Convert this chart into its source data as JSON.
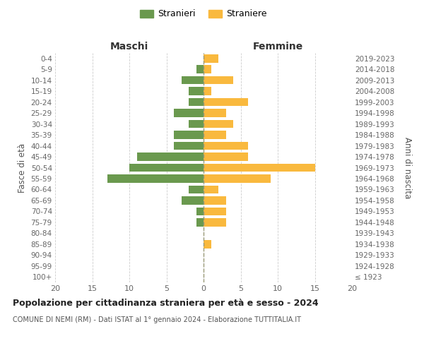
{
  "age_groups": [
    "100+",
    "95-99",
    "90-94",
    "85-89",
    "80-84",
    "75-79",
    "70-74",
    "65-69",
    "60-64",
    "55-59",
    "50-54",
    "45-49",
    "40-44",
    "35-39",
    "30-34",
    "25-29",
    "20-24",
    "15-19",
    "10-14",
    "5-9",
    "0-4"
  ],
  "birth_years": [
    "≤ 1923",
    "1924-1928",
    "1929-1933",
    "1934-1938",
    "1939-1943",
    "1944-1948",
    "1949-1953",
    "1954-1958",
    "1959-1963",
    "1964-1968",
    "1969-1973",
    "1974-1978",
    "1979-1983",
    "1984-1988",
    "1989-1993",
    "1994-1998",
    "1999-2003",
    "2004-2008",
    "2009-2013",
    "2014-2018",
    "2019-2023"
  ],
  "maschi": [
    0,
    0,
    0,
    0,
    0,
    1,
    1,
    3,
    2,
    13,
    10,
    9,
    4,
    4,
    2,
    4,
    2,
    2,
    3,
    1,
    0
  ],
  "femmine": [
    0,
    0,
    0,
    1,
    0,
    3,
    3,
    3,
    2,
    9,
    15,
    6,
    6,
    3,
    4,
    3,
    6,
    1,
    4,
    1,
    2
  ],
  "maschi_color": "#6a994e",
  "femmine_color": "#f9b93e",
  "title": "Popolazione per cittadinanza straniera per età e sesso - 2024",
  "subtitle": "COMUNE DI NEMI (RM) - Dati ISTAT al 1° gennaio 2024 - Elaborazione TUTTITALIA.IT",
  "xlabel_left": "Maschi",
  "xlabel_right": "Femmine",
  "ylabel_left": "Fasce di età",
  "ylabel_right": "Anni di nascita",
  "legend_maschi": "Stranieri",
  "legend_femmine": "Straniere",
  "xlim": 20,
  "background_color": "#ffffff",
  "grid_color": "#cccccc",
  "bar_height": 0.75
}
